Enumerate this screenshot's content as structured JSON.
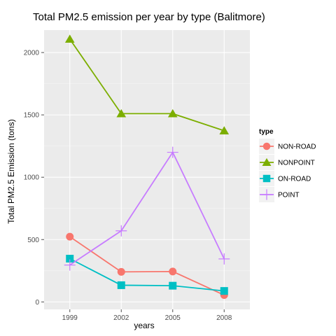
{
  "chart_data": {
    "type": "line",
    "title": "Total PM2.5 emission per year by type (Balitmore)",
    "xlabel": "years",
    "ylabel": "Total PM2.5 Emission (tons)",
    "x": [
      1999,
      2002,
      2005,
      2008
    ],
    "ylim": [
      -60,
      2180
    ],
    "yticks": [
      0,
      500,
      1000,
      1500,
      2000
    ],
    "grid": true,
    "legend_title": "type",
    "legend_position": "right",
    "series": [
      {
        "name": "NON-ROAD",
        "color": "#F8766D",
        "marker": "circle",
        "values": [
          523,
          241,
          244,
          55
        ]
      },
      {
        "name": "NONPOINT",
        "color": "#7CAE00",
        "marker": "triangle",
        "values": [
          2108,
          1510,
          1510,
          1373
        ]
      },
      {
        "name": "ON-ROAD",
        "color": "#00BFC4",
        "marker": "square",
        "values": [
          347,
          134,
          130,
          88
        ]
      },
      {
        "name": "POINT",
        "color": "#C77CFF",
        "marker": "plus",
        "values": [
          296,
          570,
          1200,
          345
        ]
      }
    ]
  }
}
